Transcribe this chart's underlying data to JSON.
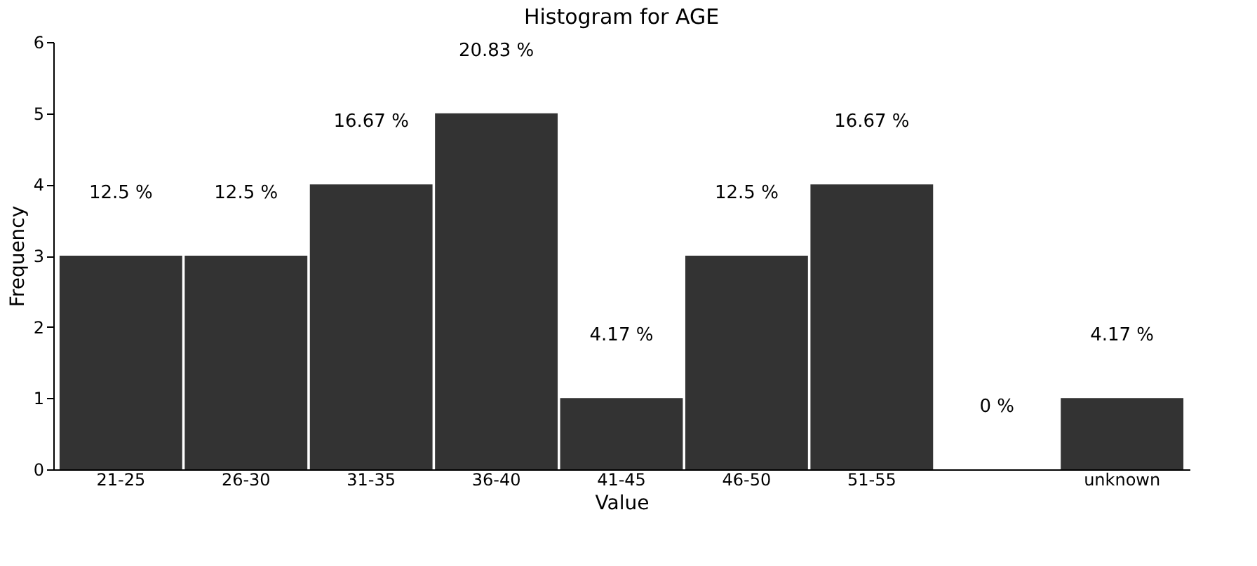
{
  "chart_data": {
    "type": "bar",
    "title": "Histogram for AGE",
    "xlabel": "Value",
    "ylabel": "Frequency",
    "categories": [
      "21-25",
      "26-30",
      "31-35",
      "36-40",
      "41-45",
      "46-50",
      "51-55",
      null,
      "unknown"
    ],
    "values": [
      3,
      3,
      4,
      5,
      1,
      3,
      4,
      0,
      1
    ],
    "annotations": [
      {
        "text": "12.5 %",
        "x": "21-25",
        "y": 3
      },
      {
        "text": "12.5 %",
        "x": "26-30",
        "y": 3
      },
      {
        "text": "16.67 %",
        "x": "31-35",
        "y": 4
      },
      {
        "text": "20.83 %",
        "x": "36-40",
        "y": 5
      },
      {
        "text": "4.17 %",
        "x": "41-45",
        "y": 1
      },
      {
        "text": "12.5 %",
        "x": "46-50",
        "y": 3
      },
      {
        "text": "16.67 %",
        "x": "51-55",
        "y": 4
      },
      {
        "text": "0 %",
        "y": 0
      },
      {
        "text": "4.17 %",
        "x": "unknown",
        "y": 1
      }
    ],
    "color": "#333333",
    "ylim": [
      0,
      6
    ],
    "yticks": [
      0,
      1,
      2,
      3,
      4,
      5,
      6
    ],
    "grid": false,
    "legend": false
  }
}
